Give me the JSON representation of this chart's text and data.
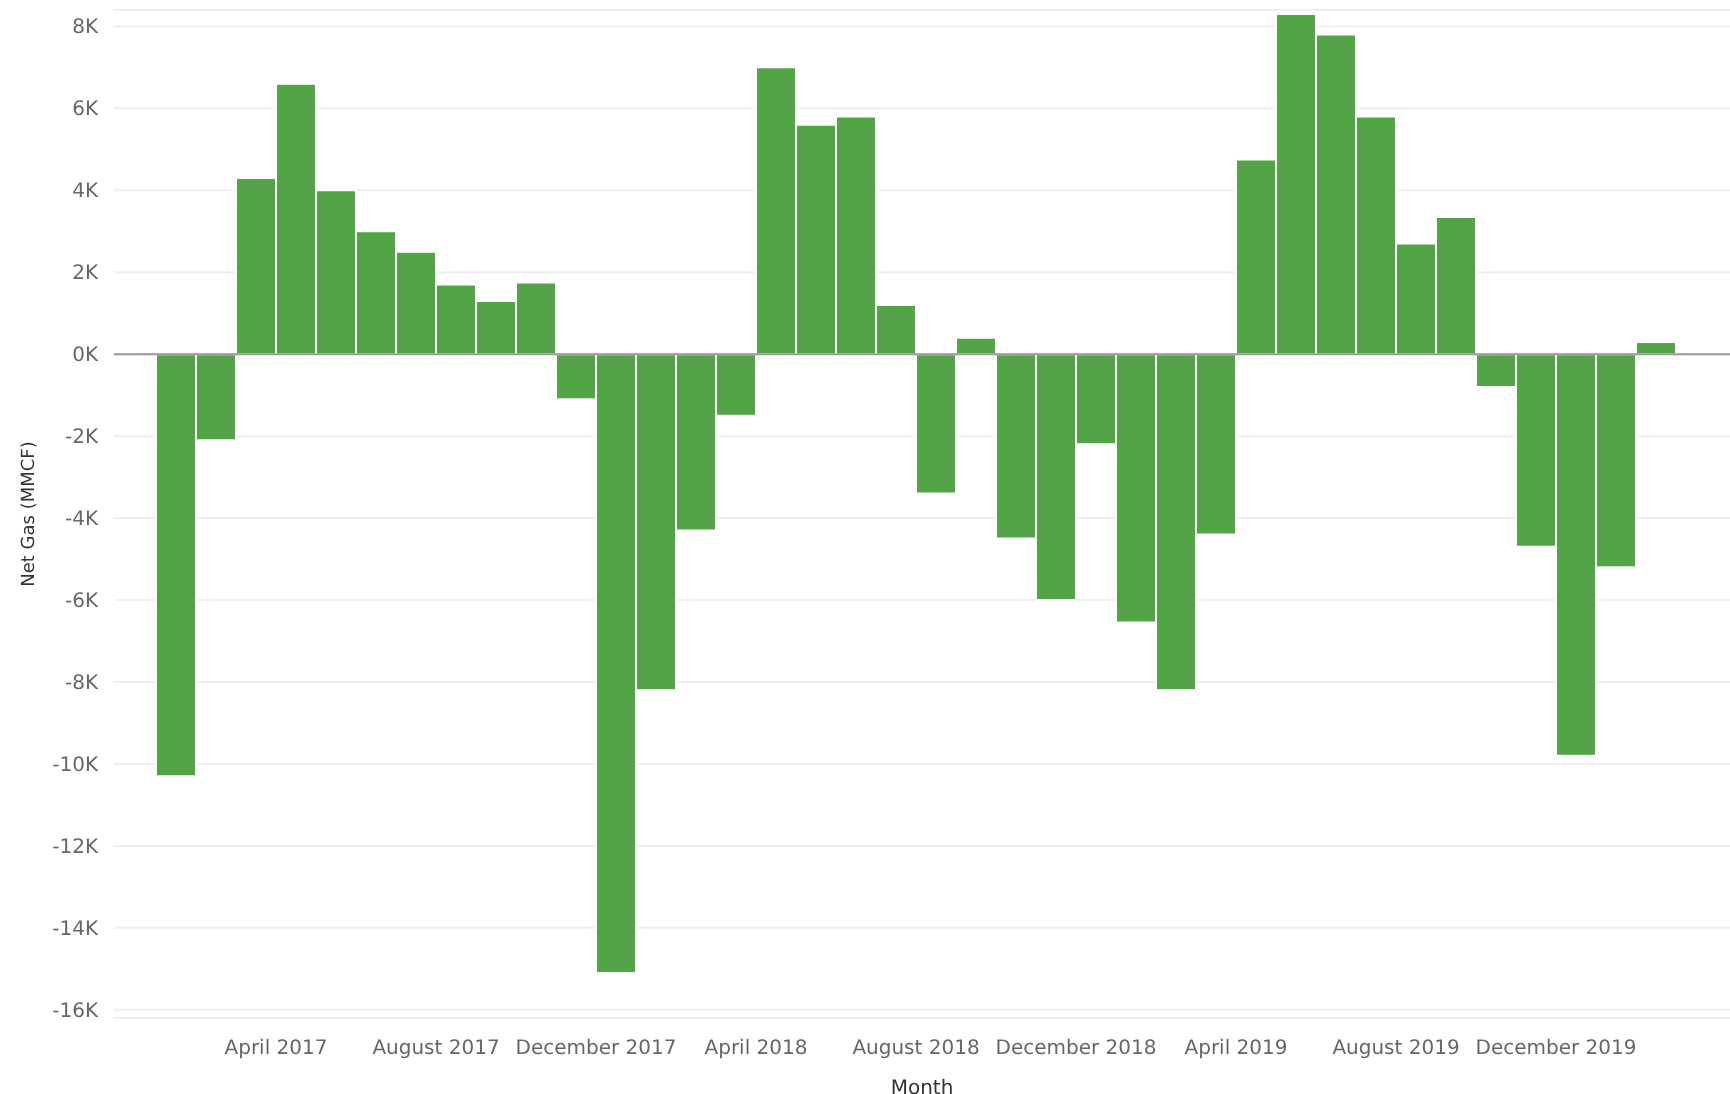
{
  "chart_data": {
    "type": "bar",
    "xlabel": "Month",
    "ylabel": "Net Gas (MMCF)",
    "categories": [
      null,
      null,
      null,
      "April 2017",
      null,
      null,
      null,
      "August 2017",
      null,
      null,
      null,
      "December 2017",
      null,
      null,
      null,
      "April 2018",
      null,
      null,
      null,
      "August 2018",
      null,
      null,
      null,
      "December 2018",
      null,
      null,
      null,
      "April 2019",
      null,
      null,
      null,
      "August 2019",
      null,
      null,
      null,
      "December 2019",
      null,
      null
    ],
    "values": [
      -10300,
      -2100,
      4300,
      6600,
      4000,
      3000,
      2500,
      1700,
      1300,
      1750,
      -1100,
      -15100,
      -8200,
      -4300,
      -1500,
      7000,
      5600,
      5800,
      1200,
      -3400,
      400,
      -4500,
      -6000,
      -2200,
      -6550,
      -8200,
      -4400,
      4750,
      8300,
      7800,
      5800,
      2700,
      3350,
      -800,
      -4700,
      -9800,
      -5200,
      300
    ],
    "color": "#53a447",
    "ylim": [
      -16200,
      8400
    ],
    "yticks": [
      {
        "value": -16000,
        "label": "-16K"
      },
      {
        "value": -14000,
        "label": "-14K"
      },
      {
        "value": -12000,
        "label": "-12K"
      },
      {
        "value": -10000,
        "label": "-10K"
      },
      {
        "value": -8000,
        "label": "-8K"
      },
      {
        "value": -6000,
        "label": "-6K"
      },
      {
        "value": -4000,
        "label": "-4K"
      },
      {
        "value": -2000,
        "label": "-2K"
      },
      {
        "value": 0,
        "label": "0K"
      },
      {
        "value": 2000,
        "label": "2K"
      },
      {
        "value": 4000,
        "label": "4K"
      },
      {
        "value": 6000,
        "label": "6K"
      },
      {
        "value": 8000,
        "label": "8K"
      }
    ],
    "grid": "y",
    "ref_lines": [
      {
        "axis": "y",
        "value": 0,
        "color": "#999999"
      }
    ]
  }
}
